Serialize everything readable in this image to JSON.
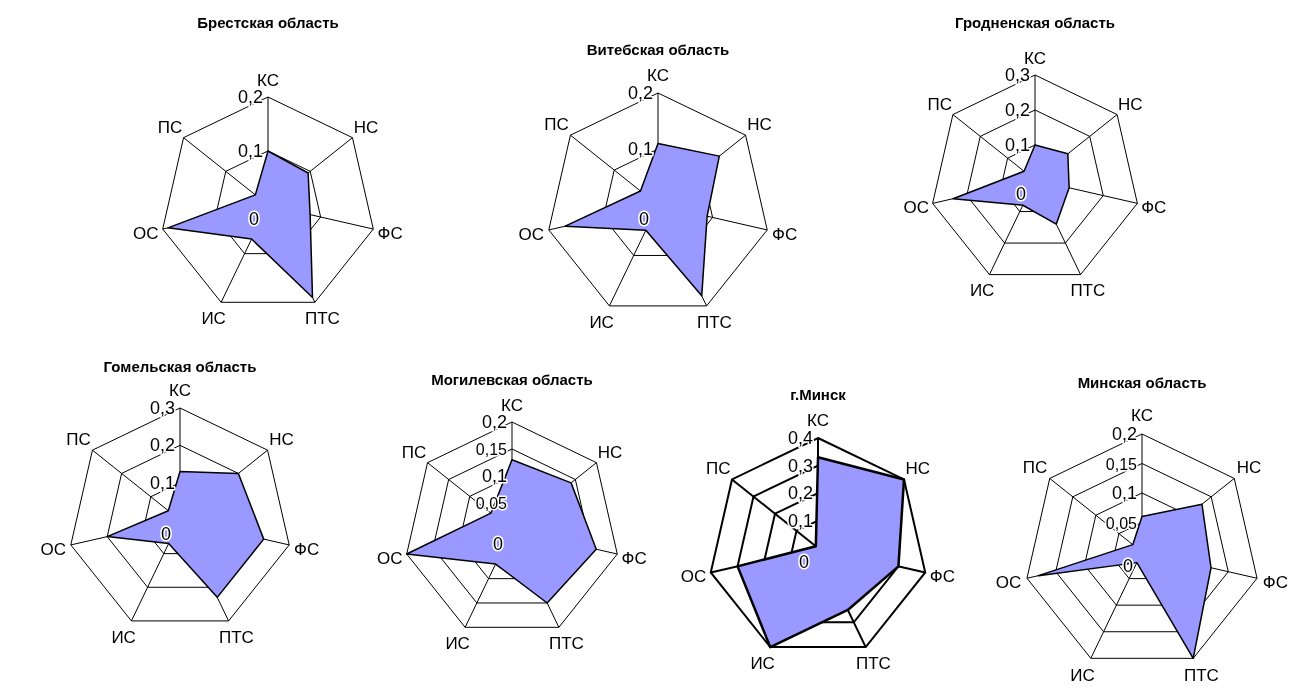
{
  "chart_data": [
    {
      "type": "radar",
      "title": "Брестская область",
      "categories": [
        "КС",
        "НС",
        "ФС",
        "ПТС",
        "ИС",
        "ОС",
        "ПС"
      ],
      "series": [
        {
          "color": "#9999ff",
          "values": [
            0.1,
            0.095,
            0.08,
            0.19,
            0.07,
            0.19,
            0.03
          ]
        }
      ],
      "ylim": [
        0,
        0.2
      ],
      "yticks": [
        {
          "value": 0,
          "label": "0"
        },
        {
          "value": 0.1,
          "label": "0,1"
        },
        {
          "value": 0.2,
          "label": "0,2"
        }
      ]
    },
    {
      "type": "radar",
      "title": "Витебская область",
      "categories": [
        "КС",
        "НС",
        "ФС",
        "ПТС",
        "ИС",
        "ОС",
        "ПС"
      ],
      "series": [
        {
          "color": "#9999ff",
          "values": [
            0.11,
            0.14,
            0.09,
            0.18,
            0.05,
            0.17,
            0.04
          ]
        }
      ],
      "ylim": [
        0,
        0.2
      ],
      "yticks": [
        {
          "value": 0,
          "label": "0"
        },
        {
          "value": 0.1,
          "label": "0,1"
        },
        {
          "value": 0.2,
          "label": "0,2"
        }
      ]
    },
    {
      "type": "radar",
      "title": "Гродненская область",
      "categories": [
        "КС",
        "НС",
        "ФС",
        "ПТС",
        "ИС",
        "ОС",
        "ПС"
      ],
      "series": [
        {
          "color": "#9999ff",
          "values": [
            0.1,
            0.12,
            0.1,
            0.14,
            0.08,
            0.24,
            0.04
          ]
        }
      ],
      "ylim": [
        0,
        0.3
      ],
      "yticks": [
        {
          "value": 0,
          "label": "0"
        },
        {
          "value": 0.1,
          "label": "0,1"
        },
        {
          "value": 0.2,
          "label": "0,2"
        },
        {
          "value": 0.3,
          "label": "0,3"
        }
      ]
    },
    {
      "type": "radar",
      "title": "Гомельская область",
      "categories": [
        "КС",
        "НС",
        "ФС",
        "ПТС",
        "ИС",
        "ОС",
        "ПС"
      ],
      "series": [
        {
          "color": "#9999ff",
          "values": [
            0.13,
            0.2,
            0.23,
            0.23,
            0.07,
            0.2,
            0.04
          ]
        }
      ],
      "ylim": [
        0,
        0.3
      ],
      "yticks": [
        {
          "value": 0,
          "label": "0"
        },
        {
          "value": 0.1,
          "label": "0,1"
        },
        {
          "value": 0.2,
          "label": "0,2"
        },
        {
          "value": 0.3,
          "label": "0,3"
        }
      ]
    },
    {
      "type": "radar",
      "title": "Могилевская область",
      "categories": [
        "КС",
        "НС",
        "ФС",
        "ПТС",
        "ИС",
        "ОС",
        "ПС"
      ],
      "series": [
        {
          "color": "#9999ff",
          "values": [
            0.13,
            0.14,
            0.16,
            0.15,
            0.07,
            0.2,
            0.05
          ]
        }
      ],
      "ylim": [
        0,
        0.2
      ],
      "yticks": [
        {
          "value": 0,
          "label": "0"
        },
        {
          "value": 0.05,
          "label": "0,05"
        },
        {
          "value": 0.1,
          "label": "0,1"
        },
        {
          "value": 0.15,
          "label": "0,15"
        },
        {
          "value": 0.2,
          "label": "0,2"
        }
      ]
    },
    {
      "type": "radar",
      "title": "г.Минск",
      "categories": [
        "КС",
        "НС",
        "ФС",
        "ПТС",
        "ИС",
        "ОС",
        "ПС"
      ],
      "series": [
        {
          "color": "#9999ff",
          "values": [
            0.33,
            0.4,
            0.3,
            0.25,
            0.4,
            0.3,
            0.01
          ]
        }
      ],
      "ylim": [
        0,
        0.4
      ],
      "yticks": [
        {
          "value": 0,
          "label": "0"
        },
        {
          "value": 0.1,
          "label": "0,1"
        },
        {
          "value": 0.2,
          "label": "0,2"
        },
        {
          "value": 0.3,
          "label": "0,3"
        },
        {
          "value": 0.4,
          "label": "0,4"
        }
      ]
    },
    {
      "type": "radar",
      "title": "Минская область",
      "categories": [
        "КС",
        "НС",
        "ФС",
        "ПТС",
        "ИС",
        "ОС",
        "ПС"
      ],
      "series": [
        {
          "color": "#9999ff",
          "values": [
            0.06,
            0.13,
            0.12,
            0.2,
            0.02,
            0.18,
            0.02
          ]
        }
      ],
      "ylim": [
        0,
        0.2
      ],
      "yticks": [
        {
          "value": 0,
          "label": "0"
        },
        {
          "value": 0.05,
          "label": "0,05"
        },
        {
          "value": 0.1,
          "label": "0,1"
        },
        {
          "value": 0.15,
          "label": "0,15"
        },
        {
          "value": 0.2,
          "label": "0,2"
        }
      ]
    }
  ]
}
